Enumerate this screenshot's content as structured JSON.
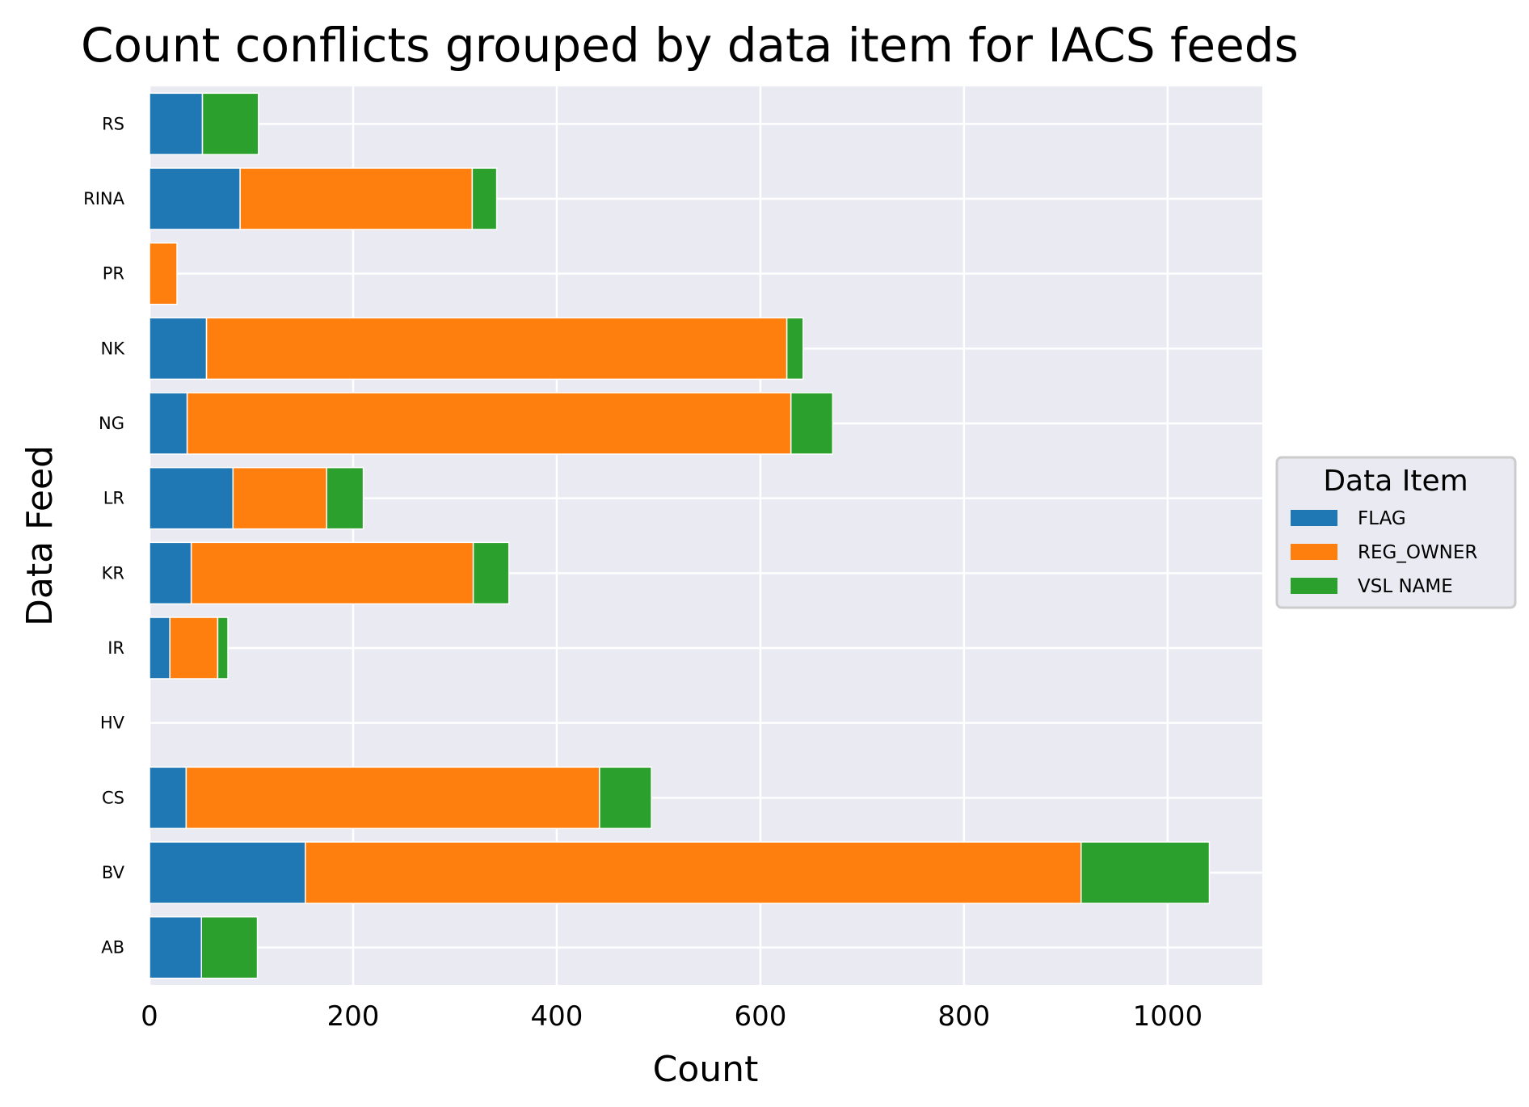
{
  "chart_data": {
    "type": "bar",
    "orientation": "horizontal",
    "stacked": true,
    "title": "Count conflicts grouped by data item for IACS feeds",
    "xlabel": "Count",
    "ylabel": "Data Feed",
    "xlim": [
      0,
      1093
    ],
    "xticks": [
      0,
      200,
      400,
      600,
      800,
      1000
    ],
    "grid": true,
    "legend_position": "right",
    "legend_title": "Data Item",
    "categories": [
      "AB",
      "BV",
      "CS",
      "HV",
      "IR",
      "KR",
      "LR",
      "NG",
      "NK",
      "PR",
      "RINA",
      "RS"
    ],
    "series": [
      {
        "name": "FLAG",
        "color": "#1f77b4",
        "values": [
          51,
          153,
          36,
          0,
          20,
          41,
          82,
          37,
          56,
          0,
          89,
          52
        ]
      },
      {
        "name": "REG_OWNER",
        "color": "#ff7f0e",
        "values": [
          0,
          762,
          406,
          0,
          47,
          277,
          92,
          593,
          570,
          27,
          228,
          0
        ]
      },
      {
        "name": "VSL NAME",
        "color": "#2ca02c",
        "values": [
          55,
          126,
          51,
          0,
          10,
          35,
          36,
          41,
          16,
          0,
          24,
          55
        ]
      }
    ]
  },
  "colors": {
    "background": "#eaeaf2",
    "grid": "#ffffff"
  }
}
